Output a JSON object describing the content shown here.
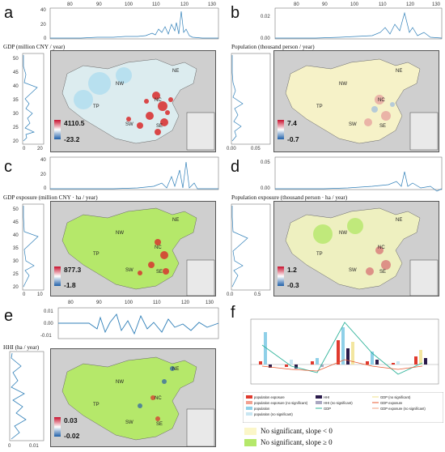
{
  "panels": [
    {
      "letter": "a",
      "title": "GDP (million CNY / year)",
      "cmax": "4110.5",
      "cmin": "-23.2",
      "top_xticks": [
        "80",
        "90",
        "100",
        "110",
        "120",
        "130"
      ],
      "top_yticks": [
        "0",
        "20",
        "40"
      ],
      "left_xticks": [
        "0",
        "20"
      ],
      "left_yticks": [
        "20",
        "25",
        "30",
        "35",
        "40",
        "45",
        "50"
      ],
      "scheme": "red"
    },
    {
      "letter": "b",
      "title": "Population (thousand person / year)",
      "cmax": "7.4",
      "cmin": "-0.7",
      "top_xticks": [
        "80",
        "90",
        "100",
        "110",
        "120",
        "130"
      ],
      "top_yticks": [
        "0.00",
        "0.02"
      ],
      "left_xticks": [
        "0.00",
        "0.05"
      ],
      "left_yticks": [
        "20",
        "25",
        "30",
        "35",
        "40",
        "45",
        "50"
      ],
      "scheme": "pale"
    },
    {
      "letter": "c",
      "title": "GDP exposure (million CNY · ha / year)",
      "cmax": "877.3",
      "cmin": "-1.8",
      "top_xticks": [
        "80",
        "90",
        "100",
        "110",
        "120",
        "130"
      ],
      "top_yticks": [
        "0",
        "20",
        "40"
      ],
      "left_xticks": [
        "0",
        "10"
      ],
      "left_yticks": [
        "20",
        "25",
        "30",
        "35",
        "40",
        "45",
        "50"
      ],
      "scheme": "green"
    },
    {
      "letter": "d",
      "title": "Population exposure (thousand person · ha / year)",
      "cmax": "1.2",
      "cmin": "-0.3",
      "top_xticks": [
        "80",
        "90",
        "100",
        "110",
        "120",
        "130"
      ],
      "top_yticks": [
        "0.00",
        "0.05"
      ],
      "left_xticks": [
        "0.0",
        "0.5"
      ],
      "left_yticks": [
        "20",
        "25",
        "30",
        "35",
        "40",
        "45",
        "50"
      ],
      "scheme": "mixed"
    },
    {
      "letter": "e",
      "title": "HHI (ha / year)",
      "cmax": "0.03",
      "cmin": "-0.02",
      "top_xticks": [
        "80",
        "90",
        "100",
        "110",
        "120",
        "130"
      ],
      "top_yticks": [
        "-0.01",
        "0.00",
        "0.01"
      ],
      "left_xticks": [
        "0",
        "0.01"
      ],
      "left_yticks": [
        "20",
        "25",
        "30",
        "35",
        "40",
        "45",
        "50"
      ],
      "scheme": "green"
    }
  ],
  "regions": [
    "NW",
    "NE",
    "TP",
    "NC",
    "SW",
    "SE"
  ],
  "panel_f": {
    "letter": "f",
    "legend": [
      {
        "label": "population exposure",
        "color": "#e03a2e",
        "kind": "bar"
      },
      {
        "label": "HHI",
        "color": "#2a1a4a",
        "kind": "bar"
      },
      {
        "label": "GDP (no significant)",
        "color": "#f3e6a0",
        "kind": "line"
      },
      {
        "label": "population exposure (no significant)",
        "color": "#f2a090",
        "kind": "bar"
      },
      {
        "label": "HHI (no significant)",
        "color": "#a8a6c0",
        "kind": "bar"
      },
      {
        "label": "GDP exposure",
        "color": "#e85a30",
        "kind": "line"
      },
      {
        "label": "population",
        "color": "#8fd0e8",
        "kind": "bar"
      },
      {
        "label": "GDP",
        "color": "#2fb39a",
        "kind": "line"
      },
      {
        "label": "GDP exposure (no significant)",
        "color": "#f0a080",
        "kind": "line"
      },
      {
        "label": "population (no significant)",
        "color": "#c8e6f2",
        "kind": "bar"
      }
    ]
  },
  "bottom_legend": [
    {
      "label": "No significant, slope < 0",
      "color": "#fbf6c8"
    },
    {
      "label": "No significant, slope ≥ 0",
      "color": "#b5e86a"
    }
  ],
  "colors": {
    "red": "#c8102e",
    "blue": "#1f5fa8",
    "land_green": "#b5e86a",
    "land_pale": "#f5f1c0",
    "sea": "#cfcfcf"
  }
}
